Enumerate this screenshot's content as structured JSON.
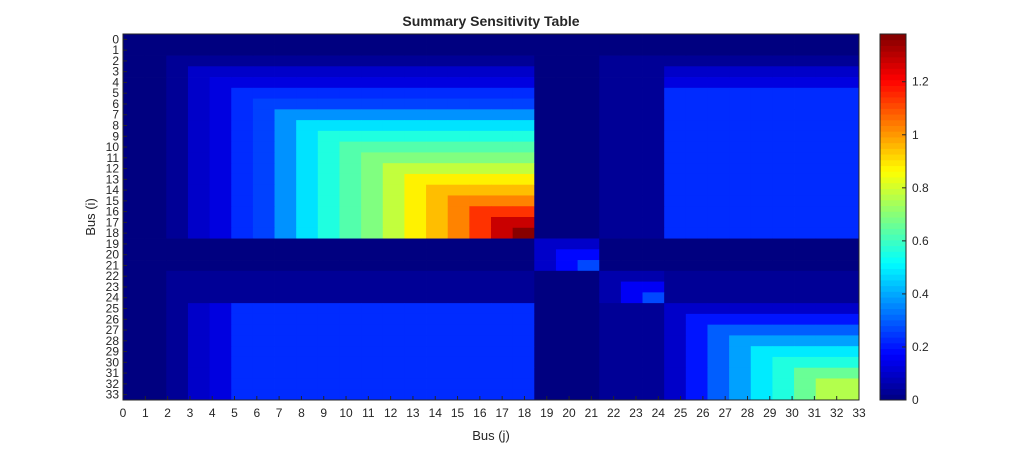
{
  "chart_data": {
    "type": "heatmap",
    "title": "Summary Sensitivity Table",
    "xlabel": "Bus (j)",
    "ylabel": "Bus (i)",
    "x_ticks": [
      0,
      1,
      2,
      3,
      4,
      5,
      6,
      7,
      8,
      9,
      10,
      11,
      12,
      13,
      14,
      15,
      16,
      17,
      18,
      19,
      20,
      21,
      22,
      23,
      24,
      25,
      26,
      27,
      28,
      29,
      30,
      31,
      32,
      33
    ],
    "y_ticks": [
      0,
      1,
      2,
      3,
      4,
      5,
      6,
      7,
      8,
      9,
      10,
      11,
      12,
      13,
      14,
      15,
      16,
      17,
      18,
      19,
      20,
      21,
      22,
      23,
      24,
      25,
      26,
      27,
      28,
      29,
      30,
      31,
      32,
      33
    ],
    "y_axis_direction": "reversed (0 at top)",
    "colormap": "jet",
    "clim": [
      0,
      1.38
    ],
    "colorbar_ticks": [
      0,
      0.2,
      0.4,
      0.6,
      0.8,
      1,
      1.2
    ],
    "colorbar_position": "right",
    "grid": false,
    "value_model": {
      "description": "Sensitivity between bus i and bus j equals the shared feeder-path resistance from substation to the common ancestor; values read off the colormap.",
      "main_feeder_cumulative": [
        0,
        0,
        0.03,
        0.1,
        0.13,
        0.23,
        0.26,
        0.37,
        0.48,
        0.56,
        0.63,
        0.69,
        0.78,
        0.88,
        0.95,
        1.03,
        1.14,
        1.28,
        1.37
      ],
      "lateral_19_21_cumulative": [
        0.1,
        0.18,
        0.27
      ],
      "lateral_22_24_cumulative": [
        0.06,
        0.16,
        0.27
      ],
      "lateral_25_32_cumulative": [
        0.1,
        0.2,
        0.3,
        0.39,
        0.49,
        0.56,
        0.66,
        0.76
      ]
    }
  }
}
